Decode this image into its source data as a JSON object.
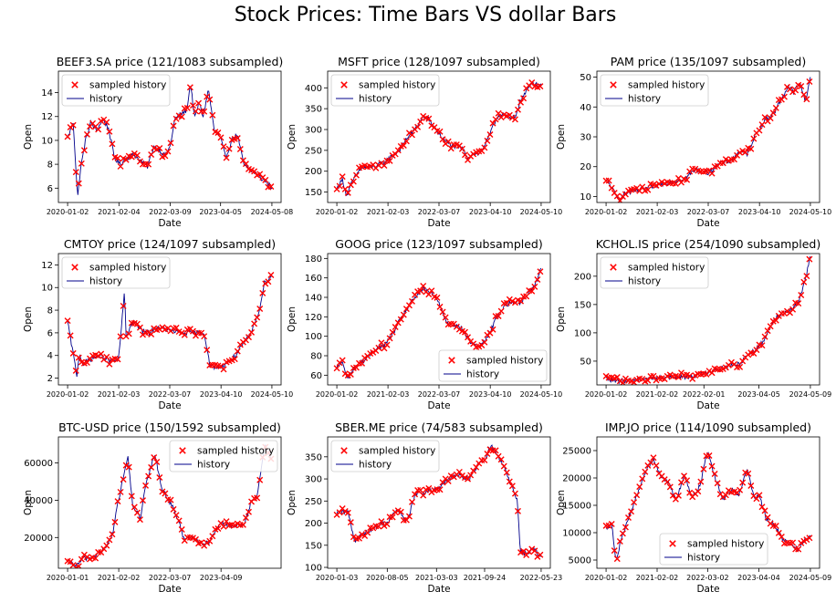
{
  "figure_title": "Stock Prices: Time Bars VS dollar Bars",
  "colors": {
    "history": "#00008b",
    "sampled": "#ff0000",
    "axes": "#000000",
    "legend_border": "#cccccc"
  },
  "chart_data": [
    {
      "type": "line+scatter",
      "title": "BEEF3.SA price (121/1083 subsampled)",
      "xlabel": "Date",
      "ylabel": "Open",
      "x_range": [
        "2020-01-02",
        "2024-05-08"
      ],
      "ylim": [
        4.8,
        15.8
      ],
      "yticks": [
        6,
        8,
        10,
        12,
        14
      ],
      "xticks": [
        "2020-01-02",
        "2021-02-04",
        "2022-03-09",
        "2023-04-05",
        "2024-05-08"
      ],
      "legend": {
        "location": "upper-left",
        "entries": [
          "sampled history",
          "history"
        ]
      },
      "series": [
        {
          "name": "history",
          "x": [
            "2020-01-02",
            "2020-02-15",
            "2020-03-20",
            "2020-04-10",
            "2020-05-20",
            "2020-07-01",
            "2020-08-15",
            "2020-10-01",
            "2020-11-15",
            "2021-01-01",
            "2021-02-15",
            "2021-04-01",
            "2021-06-01",
            "2021-08-01",
            "2021-09-15",
            "2021-11-01",
            "2021-12-15",
            "2022-02-01",
            "2022-03-09",
            "2022-04-15",
            "2022-06-01",
            "2022-07-15",
            "2022-08-15",
            "2022-09-15",
            "2022-10-20",
            "2022-11-20",
            "2023-01-01",
            "2023-02-15",
            "2023-04-05",
            "2023-05-15",
            "2023-07-01",
            "2023-08-15",
            "2023-10-01",
            "2023-11-15",
            "2024-01-01",
            "2024-02-15",
            "2024-04-01",
            "2024-05-08"
          ],
          "y": [
            10.2,
            11.5,
            5.2,
            7.5,
            10.0,
            11.5,
            10.8,
            11.8,
            11.0,
            8.5,
            8.0,
            8.5,
            8.8,
            8.2,
            7.8,
            9.5,
            9.2,
            8.7,
            9.5,
            11.8,
            12.2,
            12.5,
            14.8,
            11.8,
            13.2,
            12.0,
            14.3,
            10.8,
            10.2,
            8.5,
            10.0,
            10.5,
            8.0,
            7.5,
            7.3,
            6.8,
            6.5,
            6.0
          ]
        }
      ]
    },
    {
      "type": "line+scatter",
      "title": "MSFT price (128/1097 subsampled)",
      "xlabel": "Date",
      "ylabel": "Open",
      "x_range": [
        "2020-01-02",
        "2024-05-10"
      ],
      "ylim": [
        125,
        440
      ],
      "yticks": [
        150,
        200,
        250,
        300,
        350,
        400
      ],
      "xticks": [
        "2020-01-02",
        "2021-02-03",
        "2022-03-07",
        "2023-04-10",
        "2024-05-10"
      ],
      "legend": {
        "location": "upper-left",
        "entries": [
          "sampled history",
          "history"
        ]
      },
      "series": [
        {
          "name": "history",
          "x": [
            "2020-01-02",
            "2020-02-15",
            "2020-03-20",
            "2020-05-01",
            "2020-07-01",
            "2020-09-01",
            "2020-11-01",
            "2021-01-01",
            "2021-03-01",
            "2021-05-01",
            "2021-07-01",
            "2021-09-01",
            "2021-11-01",
            "2021-12-15",
            "2022-02-01",
            "2022-03-07",
            "2022-05-01",
            "2022-07-01",
            "2022-09-01",
            "2022-10-20",
            "2022-12-01",
            "2023-01-15",
            "2023-03-01",
            "2023-04-10",
            "2023-06-01",
            "2023-07-15",
            "2023-09-01",
            "2023-10-20",
            "2023-12-01",
            "2024-01-15",
            "2024-03-01",
            "2024-04-15",
            "2024-05-10"
          ],
          "y": [
            158,
            180,
            140,
            175,
            205,
            210,
            212,
            220,
            235,
            250,
            280,
            300,
            330,
            325,
            305,
            290,
            270,
            260,
            255,
            232,
            245,
            240,
            265,
            290,
            330,
            340,
            325,
            330,
            370,
            390,
            415,
            405,
            410
          ]
        }
      ]
    },
    {
      "type": "line+scatter",
      "title": "PAM price (135/1097 subsampled)",
      "xlabel": "Date",
      "ylabel": "Open",
      "x_range": [
        "2020-01-02",
        "2024-05-10"
      ],
      "ylim": [
        8,
        52
      ],
      "yticks": [
        10,
        20,
        30,
        40,
        50
      ],
      "xticks": [
        "2020-01-02",
        "2021-02-03",
        "2022-03-07",
        "2023-04-10",
        "2024-05-10"
      ],
      "legend": {
        "location": "upper-left",
        "entries": [
          "sampled history",
          "history"
        ]
      },
      "series": [
        {
          "name": "history",
          "x": [
            "2020-01-02",
            "2020-02-15",
            "2020-04-01",
            "2020-06-01",
            "2020-09-01",
            "2020-12-01",
            "2021-03-01",
            "2021-06-01",
            "2021-09-01",
            "2021-12-01",
            "2022-03-07",
            "2022-06-01",
            "2022-09-01",
            "2022-11-01",
            "2023-01-01",
            "2023-03-01",
            "2023-04-10",
            "2023-06-01",
            "2023-08-01",
            "2023-10-01",
            "2023-11-20",
            "2024-01-01",
            "2024-02-15",
            "2024-04-01",
            "2024-05-10"
          ],
          "y": [
            16,
            13,
            9,
            11,
            12,
            13,
            14,
            15,
            16,
            19,
            18,
            21,
            22,
            25,
            24,
            30,
            33,
            36,
            38,
            43,
            47,
            45,
            48,
            42,
            50
          ]
        }
      ]
    },
    {
      "type": "line+scatter",
      "title": "CMTOY price (124/1097 subsampled)",
      "xlabel": "Date",
      "ylabel": "Open",
      "x_range": [
        "2020-01-02",
        "2024-05-10"
      ],
      "ylim": [
        1.4,
        13.0
      ],
      "yticks": [
        2,
        4,
        6,
        8,
        10,
        12
      ],
      "xticks": [
        "2020-01-02",
        "2021-02-03",
        "2022-03-07",
        "2023-04-10",
        "2024-05-10"
      ],
      "legend": {
        "location": "upper-left",
        "entries": [
          "sampled history",
          "history"
        ]
      },
      "series": [
        {
          "name": "history",
          "x": [
            "2020-01-02",
            "2020-03-15",
            "2020-04-01",
            "2020-05-01",
            "2020-06-01",
            "2020-09-01",
            "2020-12-01",
            "2021-02-01",
            "2021-03-20",
            "2021-04-01",
            "2021-05-01",
            "2021-06-01",
            "2021-08-01",
            "2021-10-01",
            "2021-12-01",
            "2022-03-07",
            "2022-06-01",
            "2022-09-01",
            "2022-12-01",
            "2023-01-15",
            "2023-04-10",
            "2023-06-01",
            "2023-08-01",
            "2023-10-01",
            "2023-12-01",
            "2024-02-01",
            "2024-03-15",
            "2024-05-10"
          ],
          "y": [
            7.0,
            2.2,
            4.2,
            3.2,
            3.5,
            4.0,
            3.5,
            3.6,
            9.6,
            5.6,
            6.5,
            7.0,
            6.2,
            6.0,
            6.5,
            6.2,
            6.0,
            6.0,
            6.0,
            3.0,
            3.0,
            3.4,
            4.0,
            5.0,
            6.0,
            8.0,
            10.5,
            11.0
          ]
        }
      ]
    },
    {
      "type": "line+scatter",
      "title": "GOOG price (123/1097 subsampled)",
      "xlabel": "Date",
      "ylabel": "Open",
      "x_range": [
        "2020-01-02",
        "2024-05-10"
      ],
      "ylim": [
        50,
        185
      ],
      "yticks": [
        60,
        80,
        100,
        120,
        140,
        160,
        180
      ],
      "xticks": [
        "2020-01-02",
        "2021-02-03",
        "2022-03-07",
        "2023-04-10",
        "2024-05-10"
      ],
      "legend": {
        "location": "lower-right",
        "entries": [
          "sampled history",
          "history"
        ]
      },
      "series": [
        {
          "name": "history",
          "x": [
            "2020-01-02",
            "2020-02-15",
            "2020-03-20",
            "2020-06-01",
            "2020-09-01",
            "2020-11-01",
            "2021-01-01",
            "2021-03-01",
            "2021-05-01",
            "2021-07-01",
            "2021-09-01",
            "2021-11-01",
            "2022-01-01",
            "2022-03-07",
            "2022-05-01",
            "2022-07-01",
            "2022-09-01",
            "2022-11-01",
            "2023-01-01",
            "2023-03-01",
            "2023-04-10",
            "2023-06-01",
            "2023-08-01",
            "2023-10-01",
            "2023-12-01",
            "2024-02-01",
            "2024-04-01",
            "2024-05-10"
          ],
          "y": [
            68,
            74,
            56,
            70,
            78,
            88,
            90,
            100,
            115,
            128,
            140,
            148,
            145,
            135,
            115,
            112,
            108,
            95,
            89,
            95,
            105,
            120,
            132,
            135,
            135,
            145,
            155,
            170
          ]
        }
      ]
    },
    {
      "type": "line+scatter",
      "title": "KCHOL.IS price (254/1090 subsampled)",
      "xlabel": "Date",
      "ylabel": "Open",
      "x_range": [
        "2020-01-02",
        "2024-05-09"
      ],
      "ylim": [
        8,
        240
      ],
      "yticks": [
        50,
        100,
        150,
        200
      ],
      "xticks": [
        "2020-01-02",
        "2021-02-02",
        "2022-02-01",
        "2023-04-05",
        "2024-05-09"
      ],
      "legend": {
        "location": "upper-left",
        "entries": [
          "sampled history",
          "history"
        ]
      },
      "series": [
        {
          "name": "history",
          "x": [
            "2020-01-02",
            "2020-03-20",
            "2020-06-01",
            "2020-09-01",
            "2020-12-01",
            "2021-03-01",
            "2021-06-01",
            "2021-09-01",
            "2021-12-01",
            "2022-02-01",
            "2022-05-01",
            "2022-08-01",
            "2022-11-01",
            "2023-01-01",
            "2023-03-01",
            "2023-04-05",
            "2023-06-01",
            "2023-08-01",
            "2023-10-01",
            "2023-12-01",
            "2024-02-01",
            "2024-03-15",
            "2024-05-09"
          ],
          "y": [
            20,
            14,
            16,
            18,
            20,
            21,
            23,
            22,
            25,
            28,
            35,
            40,
            45,
            60,
            70,
            75,
            95,
            125,
            135,
            140,
            150,
            180,
            235
          ]
        }
      ]
    },
    {
      "type": "line+scatter",
      "title": "BTC-USD price (150/1592 subsampled)",
      "xlabel": "Date",
      "ylabel": "Open",
      "x_range": [
        "2020-01-01",
        "2024-05-09"
      ],
      "ylim": [
        3500,
        74000
      ],
      "yticks": [
        20000,
        40000,
        60000
      ],
      "xticks": [
        "2020-01-01",
        "2021-02-02",
        "2022-03-07",
        "2023-04-09"
      ],
      "legend": {
        "location": "upper-right",
        "entries": [
          "sampled history",
          "history"
        ]
      },
      "series": [
        {
          "name": "history",
          "x": [
            "2020-01-01",
            "2020-03-13",
            "2020-05-01",
            "2020-07-01",
            "2020-09-01",
            "2020-11-01",
            "2020-12-20",
            "2021-01-15",
            "2021-02-02",
            "2021-03-15",
            "2021-04-14",
            "2021-05-20",
            "2021-07-20",
            "2021-09-01",
            "2021-11-10",
            "2022-01-01",
            "2022-03-07",
            "2022-05-10",
            "2022-06-18",
            "2022-09-01",
            "2022-11-10",
            "2023-01-01",
            "2023-03-01",
            "2023-04-09",
            "2023-06-15",
            "2023-08-15",
            "2023-10-15",
            "2023-12-01",
            "2024-01-15",
            "2024-03-14",
            "2024-05-09"
          ],
          "y": [
            7200,
            5000,
            8800,
            9200,
            11500,
            15000,
            23000,
            35000,
            40000,
            55000,
            63000,
            38000,
            30000,
            48000,
            65000,
            47000,
            39000,
            30000,
            20000,
            20000,
            16500,
            17000,
            23000,
            28000,
            26000,
            26500,
            28000,
            40000,
            42000,
            70000,
            62000
          ]
        }
      ]
    },
    {
      "type": "line+scatter",
      "title": "SBER.ME price (74/583 subsampled)",
      "xlabel": "Date",
      "ylabel": "Open",
      "x_range": [
        "2020-01-03",
        "2022-05-23"
      ],
      "ylim": [
        98,
        395
      ],
      "yticks": [
        100,
        150,
        200,
        250,
        300,
        350
      ],
      "xticks": [
        "2020-01-03",
        "2020-08-05",
        "2021-03-03",
        "2021-09-24",
        "2022-05-23"
      ],
      "legend": {
        "location": "upper-left",
        "entries": [
          "sampled history",
          "history"
        ]
      },
      "series": [
        {
          "name": "history",
          "x": [
            "2020-01-03",
            "2020-02-20",
            "2020-03-18",
            "2020-04-15",
            "2020-06-01",
            "2020-07-15",
            "2020-08-05",
            "2020-09-15",
            "2020-10-30",
            "2020-12-01",
            "2021-01-15",
            "2021-03-03",
            "2021-04-15",
            "2021-06-01",
            "2021-07-20",
            "2021-09-01",
            "2021-09-24",
            "2021-10-20",
            "2021-11-20",
            "2021-12-20",
            "2022-01-20",
            "2022-02-10",
            "2022-02-24",
            "2022-03-28",
            "2022-04-15",
            "2022-05-23"
          ],
          "y": [
            222,
            225,
            160,
            175,
            185,
            200,
            200,
            230,
            205,
            265,
            270,
            275,
            295,
            310,
            300,
            335,
            340,
            375,
            355,
            320,
            280,
            250,
            135,
            130,
            145,
            125
          ]
        }
      ]
    },
    {
      "type": "line+scatter",
      "title": "IMP.JO price (114/1090 subsampled)",
      "xlabel": "Date",
      "ylabel": "Open",
      "x_range": [
        "2020-01-02",
        "2024-05-09"
      ],
      "ylim": [
        3500,
        27500
      ],
      "yticks": [
        5000,
        10000,
        15000,
        20000,
        25000
      ],
      "xticks": [
        "2020-01-02",
        "2021-02-02",
        "2022-03-02",
        "2023-04-04",
        "2024-05-09"
      ],
      "legend": {
        "location": "lower-center",
        "entries": [
          "sampled history",
          "history"
        ]
      },
      "series": [
        {
          "name": "history",
          "x": [
            "2020-01-02",
            "2020-02-15",
            "2020-03-20",
            "2020-05-01",
            "2020-07-01",
            "2020-09-01",
            "2020-11-01",
            "2021-01-01",
            "2021-02-02",
            "2021-03-15",
            "2021-05-01",
            "2021-07-01",
            "2021-09-01",
            "2021-11-01",
            "2022-01-01",
            "2022-03-02",
            "2022-05-01",
            "2022-07-01",
            "2022-09-01",
            "2022-11-01",
            "2023-01-01",
            "2023-03-01",
            "2023-04-04",
            "2023-06-01",
            "2023-08-01",
            "2023-10-01",
            "2023-12-01",
            "2024-02-01",
            "2024-04-01",
            "2024-05-09"
          ],
          "y": [
            11000,
            11500,
            5000,
            9000,
            13000,
            17000,
            21000,
            23500,
            22000,
            20000,
            19000,
            16000,
            20500,
            16500,
            18500,
            25000,
            20000,
            16000,
            18000,
            17000,
            21500,
            16500,
            17000,
            12500,
            11500,
            9000,
            8000,
            7000,
            9000,
            9500
          ]
        }
      ]
    }
  ]
}
